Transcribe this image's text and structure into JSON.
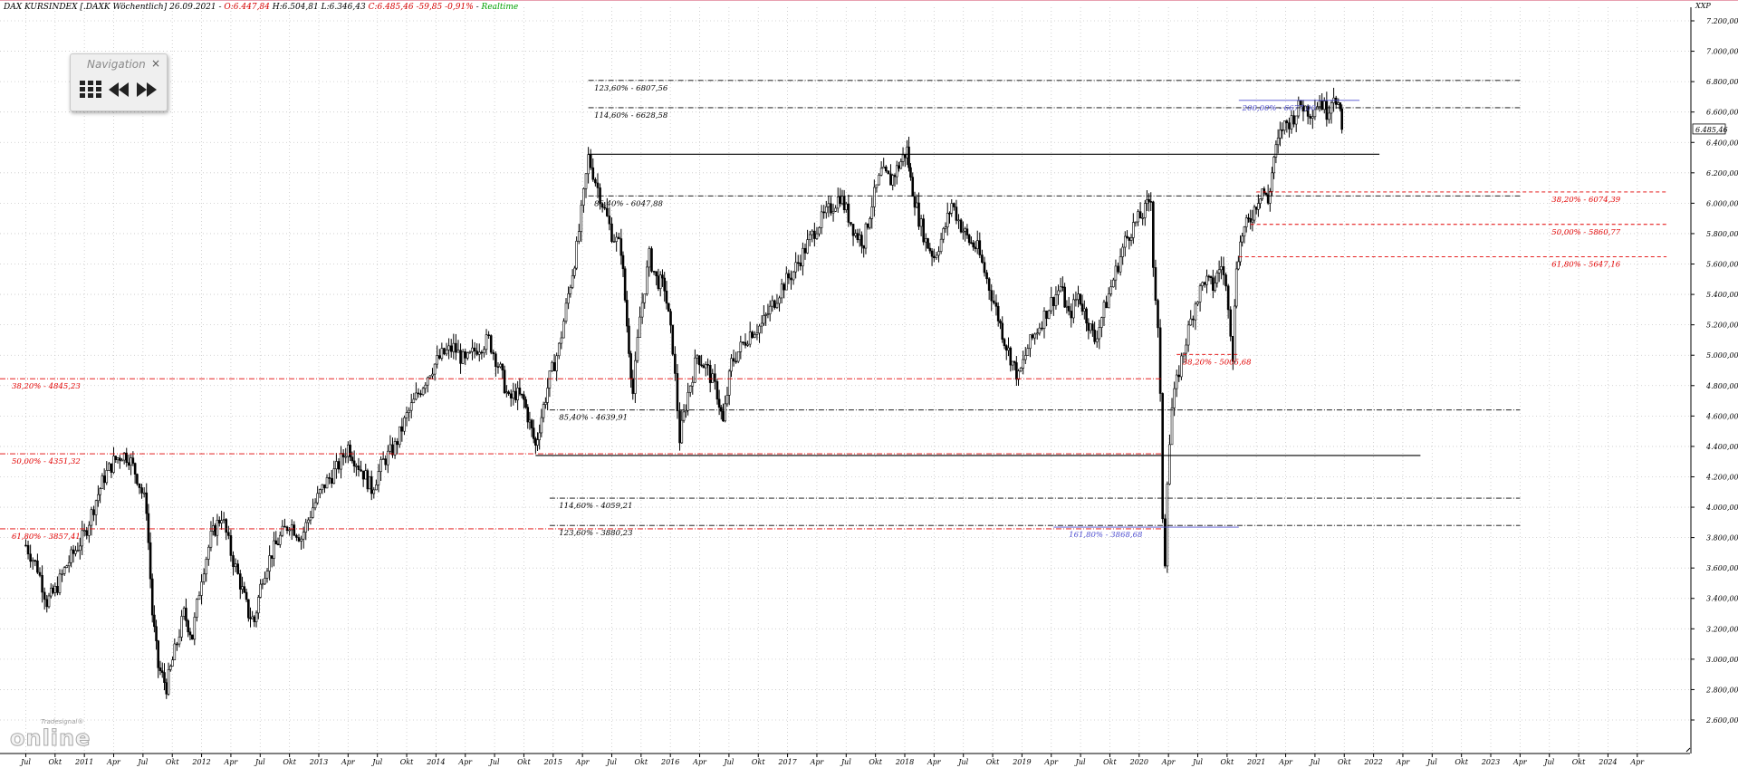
{
  "header": {
    "instrument": "DAX KURSINDEX [.DAXK Wöchentlich]",
    "date": "26.09.2021",
    "open": "O:6.447,84",
    "high": "H:6.504,81",
    "low": "L:6.346,43",
    "close": "C:6.485,46",
    "change": "-59,85",
    "change_pct": "-0,91%",
    "realtime": "Realtime"
  },
  "navigation": {
    "title": "Navigation",
    "close": "×"
  },
  "axis_tag": "XXP",
  "current_price_label": "6.485,46",
  "logo": {
    "top": "Tradesignal®",
    "main": "online"
  },
  "colors": {
    "red_line": "#e20000",
    "blue_line": "#5050d0",
    "black_line": "#000000",
    "grid": "#c8c8c8"
  },
  "chart_data": {
    "type": "candlestick",
    "title": "DAX KURSINDEX [.DAXK Wöchentlich]",
    "y_ticks": [
      {
        "v": 2600,
        "label": "2.600,00"
      },
      {
        "v": 2800,
        "label": "2.800,00"
      },
      {
        "v": 3000,
        "label": "3.000,00"
      },
      {
        "v": 3200,
        "label": "3.200,00"
      },
      {
        "v": 3400,
        "label": "3.400,00"
      },
      {
        "v": 3600,
        "label": "3.600,00"
      },
      {
        "v": 3800,
        "label": "3.800,00"
      },
      {
        "v": 4000,
        "label": "4.000,00"
      },
      {
        "v": 4200,
        "label": "4.200,00"
      },
      {
        "v": 4400,
        "label": "4.400,00"
      },
      {
        "v": 4600,
        "label": "4.600,00"
      },
      {
        "v": 4800,
        "label": "4.800,00"
      },
      {
        "v": 5000,
        "label": "5.000,00"
      },
      {
        "v": 5200,
        "label": "5.200,00"
      },
      {
        "v": 5400,
        "label": "5.400,00"
      },
      {
        "v": 5600,
        "label": "5.600,00"
      },
      {
        "v": 5800,
        "label": "5.800,00"
      },
      {
        "v": 6000,
        "label": "6.000,00"
      },
      {
        "v": 6200,
        "label": "6.200,00"
      },
      {
        "v": 6400,
        "label": "6.400,00"
      },
      {
        "v": 6600,
        "label": "6.600,00"
      },
      {
        "v": 6800,
        "label": "6.800,00"
      },
      {
        "v": 7000,
        "label": "7.000,00"
      },
      {
        "v": 7200,
        "label": "7.200,00"
      }
    ],
    "x_ticks": [
      "Jul",
      "Okt",
      "2011",
      "Apr",
      "Jul",
      "Okt",
      "2012",
      "Apr",
      "Jul",
      "Okt",
      "2013",
      "Apr",
      "Jul",
      "Okt",
      "2014",
      "Apr",
      "Jul",
      "Okt",
      "2015",
      "Apr",
      "Jul",
      "Okt",
      "2016",
      "Apr",
      "Jul",
      "Okt",
      "2017",
      "Apr",
      "Jul",
      "Okt",
      "2018",
      "Apr",
      "Jul",
      "Okt",
      "2019",
      "Apr",
      "Jul",
      "Okt",
      "2020",
      "Apr",
      "Jul",
      "Okt",
      "2021",
      "Apr",
      "Jul",
      "Okt",
      "2022",
      "Apr",
      "Jul",
      "Okt",
      "2023",
      "Apr",
      "Jul",
      "Okt",
      "2024",
      "Apr"
    ],
    "price_path": [
      [
        2010.5,
        3750
      ],
      [
        2010.6,
        3600
      ],
      [
        2010.68,
        3380
      ],
      [
        2010.75,
        3450
      ],
      [
        2010.85,
        3620
      ],
      [
        2011.0,
        3820
      ],
      [
        2011.1,
        4050
      ],
      [
        2011.17,
        4200
      ],
      [
        2011.25,
        4300
      ],
      [
        2011.32,
        4350
      ],
      [
        2011.38,
        4330
      ],
      [
        2011.45,
        4200
      ],
      [
        2011.53,
        4000
      ],
      [
        2011.58,
        3300
      ],
      [
        2011.63,
        2950
      ],
      [
        2011.7,
        2820
      ],
      [
        2011.77,
        3050
      ],
      [
        2011.85,
        3300
      ],
      [
        2011.92,
        3150
      ],
      [
        2012.0,
        3550
      ],
      [
        2012.08,
        3800
      ],
      [
        2012.17,
        3950
      ],
      [
        2012.25,
        3700
      ],
      [
        2012.33,
        3500
      ],
      [
        2012.4,
        3300
      ],
      [
        2012.45,
        3250
      ],
      [
        2012.52,
        3550
      ],
      [
        2012.6,
        3700
      ],
      [
        2012.67,
        3800
      ],
      [
        2012.75,
        3900
      ],
      [
        2012.85,
        3800
      ],
      [
        2012.95,
        4000
      ],
      [
        2013.05,
        4150
      ],
      [
        2013.15,
        4250
      ],
      [
        2013.25,
        4400
      ],
      [
        2013.32,
        4300
      ],
      [
        2013.4,
        4200
      ],
      [
        2013.45,
        4120
      ],
      [
        2013.55,
        4300
      ],
      [
        2013.65,
        4400
      ],
      [
        2013.75,
        4600
      ],
      [
        2013.85,
        4750
      ],
      [
        2013.95,
        4900
      ],
      [
        2014.05,
        5000
      ],
      [
        2014.15,
        5050
      ],
      [
        2014.25,
        4950
      ],
      [
        2014.35,
        5050
      ],
      [
        2014.45,
        5100
      ],
      [
        2014.55,
        4900
      ],
      [
        2014.62,
        4700
      ],
      [
        2014.68,
        4750
      ],
      [
        2014.75,
        4700
      ],
      [
        2014.8,
        4550
      ],
      [
        2014.85,
        4400
      ],
      [
        2014.9,
        4600
      ],
      [
        2014.97,
        4850
      ],
      [
        2015.05,
        5050
      ],
      [
        2015.13,
        5400
      ],
      [
        2015.2,
        5700
      ],
      [
        2015.26,
        6050
      ],
      [
        2015.3,
        6300
      ],
      [
        2015.36,
        6150
      ],
      [
        2015.42,
        6000
      ],
      [
        2015.5,
        5800
      ],
      [
        2015.58,
        5700
      ],
      [
        2015.63,
        5200
      ],
      [
        2015.68,
        4750
      ],
      [
        2015.74,
        5250
      ],
      [
        2015.82,
        5650
      ],
      [
        2015.88,
        5500
      ],
      [
        2015.95,
        5450
      ],
      [
        2016.02,
        5050
      ],
      [
        2016.08,
        4450
      ],
      [
        2016.15,
        4750
      ],
      [
        2016.23,
        5000
      ],
      [
        2016.32,
        4900
      ],
      [
        2016.4,
        4750
      ],
      [
        2016.45,
        4550
      ],
      [
        2016.52,
        4950
      ],
      [
        2016.6,
        5050
      ],
      [
        2016.68,
        5150
      ],
      [
        2016.78,
        5200
      ],
      [
        2016.85,
        5300
      ],
      [
        2016.95,
        5450
      ],
      [
        2017.05,
        5550
      ],
      [
        2017.15,
        5700
      ],
      [
        2017.25,
        5850
      ],
      [
        2017.35,
        5950
      ],
      [
        2017.45,
        6050
      ],
      [
        2017.5,
        5950
      ],
      [
        2017.58,
        5800
      ],
      [
        2017.65,
        5750
      ],
      [
        2017.72,
        6000
      ],
      [
        2017.8,
        6200
      ],
      [
        2017.88,
        6150
      ],
      [
        2017.95,
        6250
      ],
      [
        2018.02,
        6350
      ],
      [
        2018.05,
        6150
      ],
      [
        2018.12,
        5900
      ],
      [
        2018.18,
        5750
      ],
      [
        2018.25,
        5650
      ],
      [
        2018.33,
        5800
      ],
      [
        2018.4,
        6000
      ],
      [
        2018.48,
        5850
      ],
      [
        2018.55,
        5750
      ],
      [
        2018.62,
        5700
      ],
      [
        2018.7,
        5500
      ],
      [
        2018.78,
        5300
      ],
      [
        2018.85,
        5100
      ],
      [
        2018.92,
        4950
      ],
      [
        2018.97,
        4850
      ],
      [
        2019.05,
        5050
      ],
      [
        2019.15,
        5200
      ],
      [
        2019.25,
        5350
      ],
      [
        2019.33,
        5450
      ],
      [
        2019.4,
        5250
      ],
      [
        2019.48,
        5400
      ],
      [
        2019.55,
        5250
      ],
      [
        2019.62,
        5100
      ],
      [
        2019.7,
        5300
      ],
      [
        2019.8,
        5550
      ],
      [
        2019.88,
        5750
      ],
      [
        2019.95,
        5850
      ],
      [
        2020.05,
        5950
      ],
      [
        2020.1,
        6050
      ],
      [
        2020.12,
        5600
      ],
      [
        2020.16,
        5150
      ],
      [
        2020.18,
        4700
      ],
      [
        2020.2,
        3950
      ],
      [
        2020.22,
        3650
      ],
      [
        2020.24,
        4200
      ],
      [
        2020.28,
        4650
      ],
      [
        2020.34,
        4900
      ],
      [
        2020.4,
        5100
      ],
      [
        2020.48,
        5350
      ],
      [
        2020.56,
        5500
      ],
      [
        2020.63,
        5450
      ],
      [
        2020.7,
        5600
      ],
      [
        2020.76,
        5350
      ],
      [
        2020.8,
        5000
      ],
      [
        2020.83,
        5600
      ],
      [
        2020.88,
        5800
      ],
      [
        2020.95,
        5900
      ],
      [
        2021.0,
        6000
      ],
      [
        2021.05,
        6100
      ],
      [
        2021.1,
        6000
      ],
      [
        2021.15,
        6300
      ],
      [
        2021.22,
        6500
      ],
      [
        2021.3,
        6550
      ],
      [
        2021.38,
        6650
      ],
      [
        2021.46,
        6600
      ],
      [
        2021.54,
        6680
      ],
      [
        2021.6,
        6600
      ],
      [
        2021.66,
        6730
      ],
      [
        2021.7,
        6650
      ],
      [
        2021.73,
        6485
      ]
    ],
    "last_close": 6485.46,
    "horizontal_lines": [
      {
        "y": 6807.56,
        "x0": 2015.3,
        "x1": 2023.25,
        "color": "black",
        "style": "dashdot",
        "label": "123,60% - 6807,56",
        "lx": 2015.35
      },
      {
        "y": 6628.58,
        "x0": 2015.3,
        "x1": 2023.25,
        "color": "black",
        "style": "dashdot",
        "label": "114,60% - 6628,58",
        "lx": 2015.35
      },
      {
        "y": 6047.88,
        "x0": 2015.3,
        "x1": 2023.25,
        "color": "black",
        "style": "dashdot",
        "label": "85,40% - 6047,88",
        "lx": 2015.35
      },
      {
        "y": 4639.91,
        "x0": 2014.97,
        "x1": 2023.25,
        "color": "black",
        "style": "dashdot",
        "label": "85,40% - 4639,91",
        "lx": 2015.05
      },
      {
        "y": 4059.21,
        "x0": 2014.97,
        "x1": 2023.25,
        "color": "black",
        "style": "dashdot",
        "label": "114,60% - 4059,21",
        "lx": 2015.05
      },
      {
        "y": 3880.23,
        "x0": 2014.97,
        "x1": 2023.25,
        "color": "black",
        "style": "dashdot",
        "label": "123,60% - 3880,23",
        "lx": 2015.05
      },
      {
        "y": 4845.23,
        "x0": 2010.28,
        "x1": 2020.2,
        "color": "red",
        "style": "dashdot",
        "label": "38,20% - 4845,23",
        "lx": 2010.38
      },
      {
        "y": 4351.32,
        "x0": 2010.28,
        "x1": 2020.2,
        "color": "red",
        "style": "dashdot",
        "label": "50,00% - 4351,32",
        "lx": 2010.38
      },
      {
        "y": 3857.41,
        "x0": 2010.28,
        "x1": 2020.2,
        "color": "red",
        "style": "dashdot",
        "label": "61,80% - 3857,41",
        "lx": 2010.38
      },
      {
        "y": 6074.39,
        "x0": 2021.0,
        "x1": 2024.5,
        "color": "red",
        "style": "dashed",
        "label": "38,20% - 6074,39",
        "lx": 2023.52
      },
      {
        "y": 5860.77,
        "x0": 2020.95,
        "x1": 2024.5,
        "color": "red",
        "style": "dashed",
        "label": "50,00% - 5860,77",
        "lx": 2023.52
      },
      {
        "y": 5647.16,
        "x0": 2020.85,
        "x1": 2024.5,
        "color": "red",
        "style": "dashed",
        "label": "61,80% - 5647,16",
        "lx": 2023.52
      },
      {
        "y": 5005.68,
        "x0": 2020.32,
        "x1": 2020.85,
        "color": "red",
        "style": "dashed",
        "label": "38,20% - 5005,68",
        "lx": 2020.37
      },
      {
        "y": 6677.0,
        "x0": 2020.85,
        "x1": 2021.88,
        "color": "blue",
        "style": "solid",
        "label": "200,00% - 6677,00",
        "lx": 2020.88
      },
      {
        "y": 3868.68,
        "x0": 2019.27,
        "x1": 2020.85,
        "color": "blue",
        "style": "solid",
        "label": "161,80% - 3868,68",
        "lx": 2019.4
      },
      {
        "y": 6322.0,
        "x0": 2015.3,
        "x1": 2022.05,
        "color": "black",
        "style": "solid",
        "label": "",
        "lx": 0
      },
      {
        "y": 4340.0,
        "x0": 2014.85,
        "x1": 2022.4,
        "color": "black",
        "style": "solid",
        "label": "",
        "lx": 0
      }
    ]
  }
}
